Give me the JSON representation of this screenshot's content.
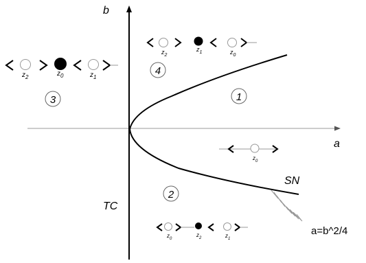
{
  "axes": {
    "x_label": "a",
    "y_label": "b"
  },
  "curves": {
    "tc_label": "TC",
    "sn_label": "SN",
    "sn_equation": "a=b^2/4"
  },
  "regions": {
    "r1": {
      "label": "1",
      "states": [
        {
          "sub": "0",
          "filled": false
        }
      ]
    },
    "r2": {
      "label": "2",
      "states": [
        {
          "sub": "0",
          "filled": false
        },
        {
          "sub": "2",
          "filled": true
        },
        {
          "sub": "1",
          "filled": false
        }
      ]
    },
    "r3": {
      "label": "3",
      "states": [
        {
          "sub": "2",
          "filled": false
        },
        {
          "sub": "0",
          "filled": true
        },
        {
          "sub": "1",
          "filled": false
        }
      ]
    },
    "r4": {
      "label": "4",
      "states": [
        {
          "sub": "2",
          "filled": false
        },
        {
          "sub": "1",
          "filled": true
        },
        {
          "sub": "0",
          "filled": false
        }
      ]
    }
  }
}
